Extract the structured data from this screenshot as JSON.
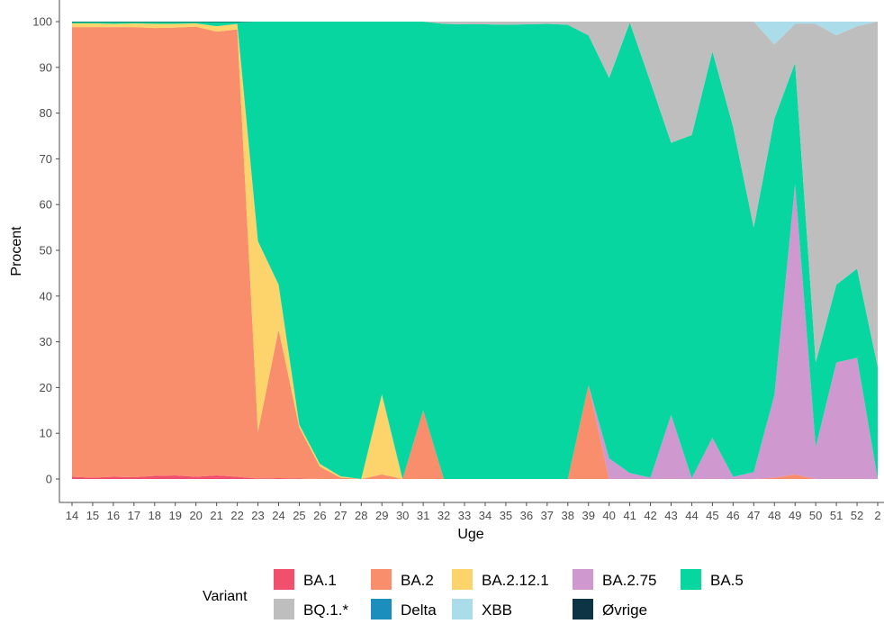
{
  "chart_data": {
    "type": "area",
    "stacked": true,
    "xlabel": "Uge",
    "ylabel": "Procent",
    "ylim": [
      0,
      100
    ],
    "yticks": [
      0,
      10,
      20,
      30,
      40,
      50,
      60,
      70,
      80,
      90,
      100
    ],
    "categories": [
      "14",
      "15",
      "16",
      "17",
      "18",
      "19",
      "20",
      "21",
      "22",
      "23",
      "24",
      "25",
      "26",
      "27",
      "28",
      "29",
      "30",
      "31",
      "32",
      "33",
      "34",
      "35",
      "36",
      "37",
      "38",
      "39",
      "40",
      "41",
      "42",
      "43",
      "44",
      "45",
      "46",
      "47",
      "48",
      "49",
      "50",
      "51",
      "52",
      "2"
    ],
    "grid": false,
    "legend": {
      "title": "Variant",
      "position": "bottom",
      "rows": [
        [
          "BA.1",
          "BA.2",
          "BA.2.12.1",
          "BA.2.75",
          "BA.5"
        ],
        [
          "BQ.1.*",
          "Delta",
          "XBB",
          "Øvrige"
        ]
      ]
    },
    "series": [
      {
        "name": "BA.1",
        "color": "#f0506e",
        "values": [
          0.5,
          0.3,
          0.5,
          0.4,
          0.7,
          0.8,
          0.5,
          0.8,
          0.5,
          0.1,
          0.2,
          0.1,
          0,
          0,
          0,
          0,
          0,
          0,
          0,
          0,
          0,
          0,
          0,
          0,
          0,
          0,
          0,
          0,
          0,
          0,
          0,
          0,
          0,
          0,
          0,
          0,
          0,
          0,
          0,
          0
        ]
      },
      {
        "name": "BA.2",
        "color": "#f98e6c",
        "values": [
          98.3,
          98.5,
          98.3,
          98.4,
          97.9,
          97.9,
          98.4,
          97.0,
          97.8,
          10.2,
          32.5,
          11.2,
          2.7,
          0.3,
          0,
          1,
          0,
          15,
          0,
          0,
          0,
          0,
          0,
          0,
          0,
          20.5,
          0,
          0,
          0,
          0,
          0,
          0,
          0,
          0,
          0.3,
          1,
          0,
          0,
          0,
          0
        ]
      },
      {
        "name": "BA.2.12.1",
        "color": "#fdd36b",
        "values": [
          0.8,
          0.8,
          0.7,
          0.8,
          0.9,
          0.8,
          0.7,
          1.2,
          1.2,
          41.7,
          9.8,
          0.6,
          0.6,
          0.3,
          0,
          17.5,
          0,
          0,
          0,
          0,
          0,
          0,
          0,
          0,
          0,
          0,
          0,
          0,
          0,
          0,
          0,
          0,
          0,
          0,
          0,
          0,
          0,
          0,
          0,
          0
        ]
      },
      {
        "name": "BA.2.75",
        "color": "#cf98cf",
        "values": [
          0,
          0,
          0,
          0,
          0,
          0,
          0,
          0,
          0,
          0,
          0,
          0,
          0,
          0,
          0,
          0,
          0,
          0,
          0,
          0,
          0,
          0,
          0,
          0,
          0,
          0,
          4.5,
          1.3,
          0.3,
          14,
          0.2,
          9,
          0.5,
          1.5,
          18,
          63.5,
          7,
          25.5,
          26.5,
          0
        ]
      },
      {
        "name": "BA.5",
        "color": "#08d6a0",
        "values": [
          0.3,
          0.3,
          0.4,
          0.3,
          0.4,
          0.4,
          0.3,
          0.9,
          0.4,
          48,
          57.5,
          88.1,
          96.7,
          99.4,
          100,
          81.5,
          100,
          85,
          99.5,
          99.4,
          99.4,
          99.3,
          99.4,
          99.5,
          99.3,
          76.5,
          83.2,
          98.5,
          86.5,
          59.5,
          75,
          84.5,
          76.5,
          53.5,
          60.5,
          26.5,
          18.5,
          17,
          19.5,
          24.5
        ]
      },
      {
        "name": "BQ.1.*",
        "color": "#bebebe",
        "values": [
          0,
          0,
          0,
          0,
          0,
          0,
          0,
          0,
          0,
          0,
          0,
          0,
          0,
          0,
          0,
          0,
          0,
          0,
          0.5,
          0.6,
          0.6,
          0.7,
          0.6,
          0.5,
          0.7,
          3,
          12.3,
          0.2,
          13.2,
          26.5,
          24.8,
          6.5,
          23,
          45,
          16.2,
          8.5,
          74,
          54.5,
          53,
          75.5
        ]
      },
      {
        "name": "Delta",
        "color": "#1c8ebd",
        "values": [
          0,
          0,
          0,
          0,
          0,
          0,
          0,
          0,
          0,
          0,
          0,
          0,
          0,
          0,
          0,
          0,
          0,
          0,
          0,
          0,
          0,
          0,
          0,
          0,
          0,
          0,
          0,
          0,
          0,
          0,
          0,
          0,
          0,
          0,
          0,
          0,
          0,
          0,
          0,
          0
        ]
      },
      {
        "name": "XBB",
        "color": "#aadcea",
        "values": [
          0,
          0,
          0,
          0,
          0,
          0,
          0,
          0,
          0,
          0,
          0,
          0,
          0,
          0,
          0,
          0,
          0,
          0,
          0,
          0,
          0,
          0,
          0,
          0,
          0,
          0,
          0,
          0,
          0,
          0,
          0,
          0,
          0,
          0,
          5,
          0.5,
          0.5,
          3,
          1,
          0
        ]
      },
      {
        "name": "Øvrige",
        "color": "#0c3444",
        "values": [
          0.1,
          0.1,
          0.1,
          0.1,
          0.1,
          0.1,
          0.1,
          0.1,
          0.1,
          0,
          0,
          0,
          0,
          0,
          0,
          0,
          0,
          0,
          0,
          0,
          0,
          0,
          0,
          0,
          0,
          0,
          0,
          0,
          0,
          0,
          0,
          0,
          0,
          0,
          0,
          0,
          0,
          0,
          0,
          0
        ]
      }
    ]
  }
}
